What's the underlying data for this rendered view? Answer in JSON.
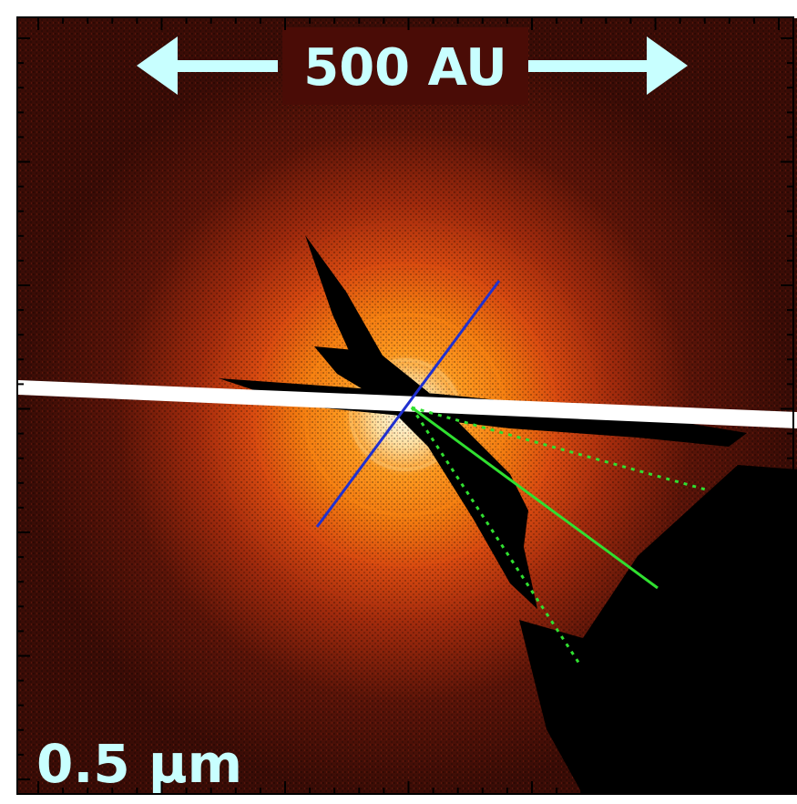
{
  "scale_bar": {
    "label": "500 AU"
  },
  "wavelength": {
    "label": "0.5 μm"
  }
}
